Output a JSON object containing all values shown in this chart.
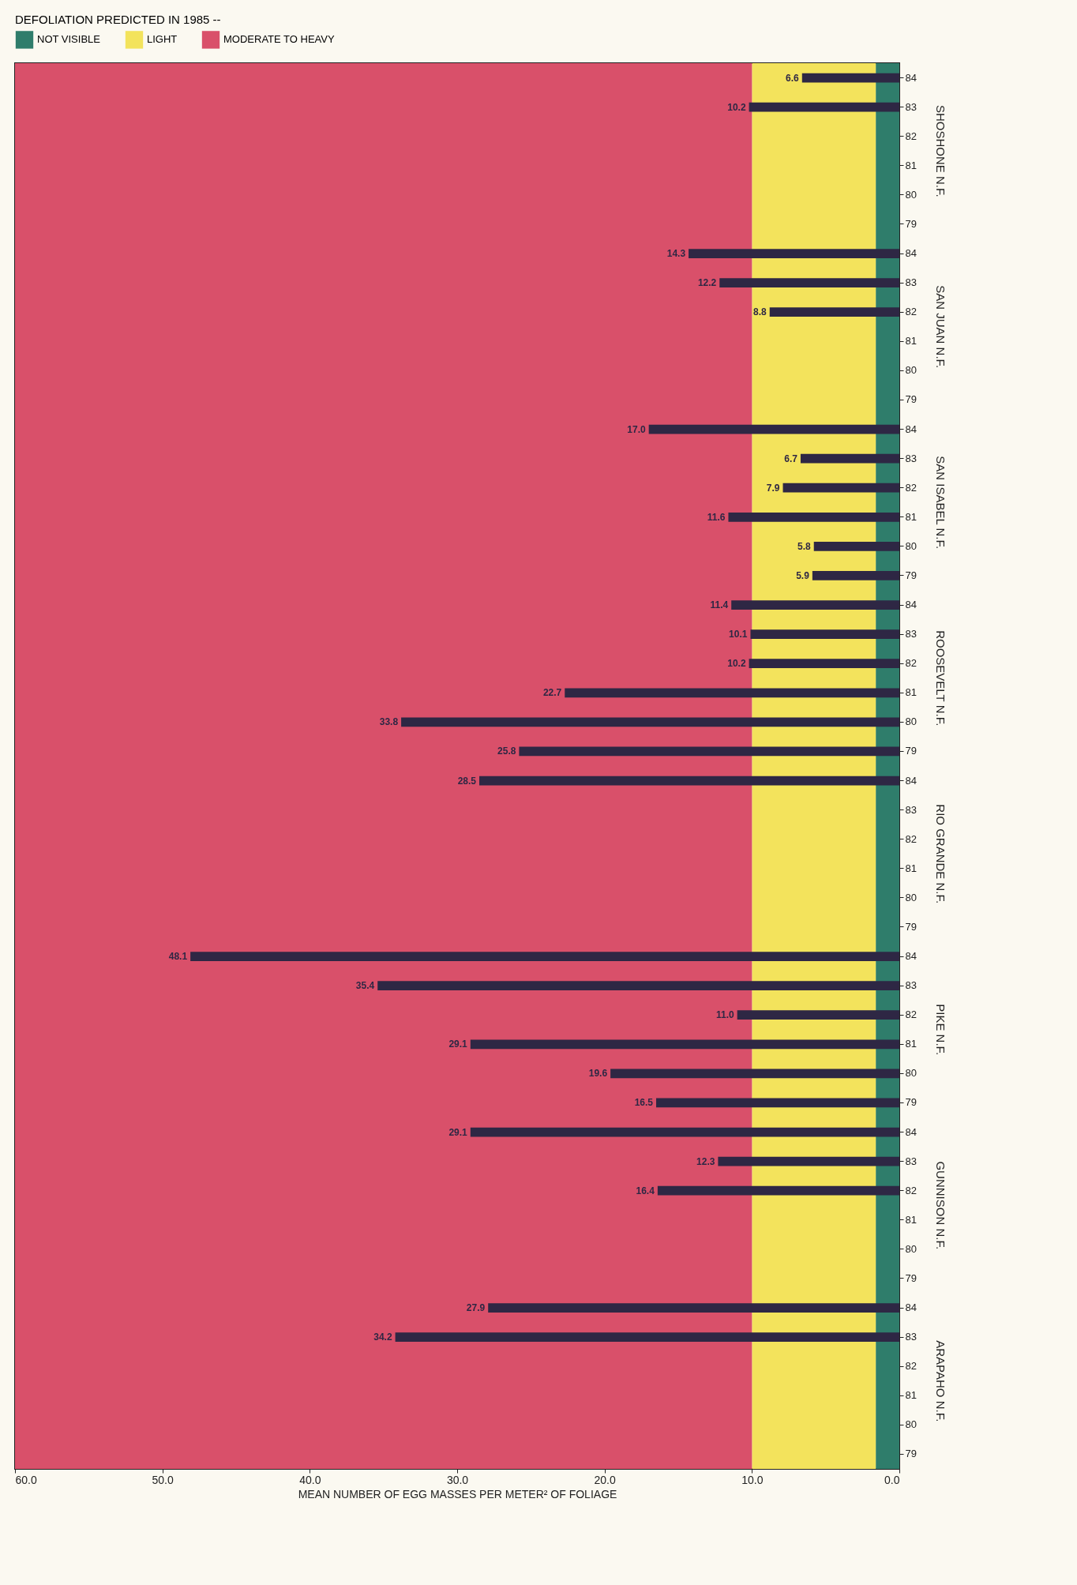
{
  "chart_data": {
    "type": "bar",
    "orientation": "horizontal",
    "legend_title": "DEFOLIATION PREDICTED IN 1985 --",
    "xlabel": "MEAN NUMBER OF EGG MASSES PER METER² OF FOLIAGE",
    "categories": [
      "84",
      "83",
      "82",
      "81",
      "80",
      "79",
      "84",
      "83",
      "82",
      "81",
      "80",
      "79",
      "84",
      "83",
      "82",
      "81",
      "80",
      "79",
      "84",
      "83",
      "82",
      "81",
      "80",
      "79",
      "84",
      "83",
      "82",
      "81",
      "80",
      "79",
      "84",
      "83",
      "82",
      "81",
      "80",
      "79",
      "84",
      "83",
      "82",
      "81",
      "80",
      "79",
      "84",
      "83",
      "82",
      "81",
      "80",
      "79"
    ],
    "values": [
      6.6,
      10.2,
      null,
      null,
      null,
      null,
      14.3,
      12.2,
      8.8,
      null,
      null,
      null,
      17.0,
      6.7,
      7.9,
      11.6,
      5.8,
      5.9,
      11.4,
      10.1,
      10.2,
      22.7,
      33.8,
      25.8,
      28.5,
      null,
      null,
      null,
      null,
      null,
      48.1,
      35.4,
      11.0,
      29.1,
      19.6,
      16.5,
      29.1,
      12.3,
      16.4,
      null,
      null,
      null,
      27.9,
      34.2,
      null,
      null,
      null,
      null
    ],
    "color": "#2e2744",
    "value_labels": [
      "6.6",
      "10.2",
      null,
      null,
      null,
      null,
      "14.3",
      "12.2",
      "8.8",
      null,
      null,
      null,
      "17.0",
      "6.7",
      "7.9",
      "11.6",
      "5.8",
      "5.9",
      "11.4",
      "10.1",
      "10.2",
      "22.7",
      "33.8",
      "25.8",
      "28.5",
      null,
      null,
      null,
      null,
      null,
      "48.1",
      "35.4",
      "11.0",
      "29.1",
      "19.6",
      "16.5",
      "29.1",
      "12.3",
      "16.4",
      null,
      null,
      null,
      "27.9",
      "34.2",
      null,
      null,
      null,
      null
    ],
    "annotations": [
      "SHOSHONE N.F.",
      "SAN JUAN N.F.",
      "SAN ISABEL N.F.",
      "ROOSEVELT N.F.",
      "RIO GRANDE N.F.",
      "PIKE N.F.",
      "GUNNISON N.F.",
      "ARAPAHO N.F."
    ],
    "xlim": [
      60,
      0
    ],
    "xticks": [
      {
        "value": 60,
        "label": "60.0"
      },
      {
        "value": 50,
        "label": "50.0"
      },
      {
        "value": 40,
        "label": "40.0"
      },
      {
        "value": 30,
        "label": "30.0"
      },
      {
        "value": 20,
        "label": "20.0"
      },
      {
        "value": 10,
        "label": "10.0"
      },
      {
        "value": 0,
        "label": "0.0"
      }
    ],
    "bands": [
      {
        "axis": "x",
        "from": 0,
        "to": 1.6,
        "label": "NOT VISIBLE",
        "color": "#2f7d6b"
      },
      {
        "axis": "x",
        "from": 1.6,
        "to": 10,
        "label": "LIGHT",
        "color": "#f3e35c"
      },
      {
        "axis": "x",
        "from": 10,
        "to": 60,
        "label": "MODERATE TO HEAVY",
        "color": "#d9506a"
      }
    ],
    "legend": "top left"
  }
}
